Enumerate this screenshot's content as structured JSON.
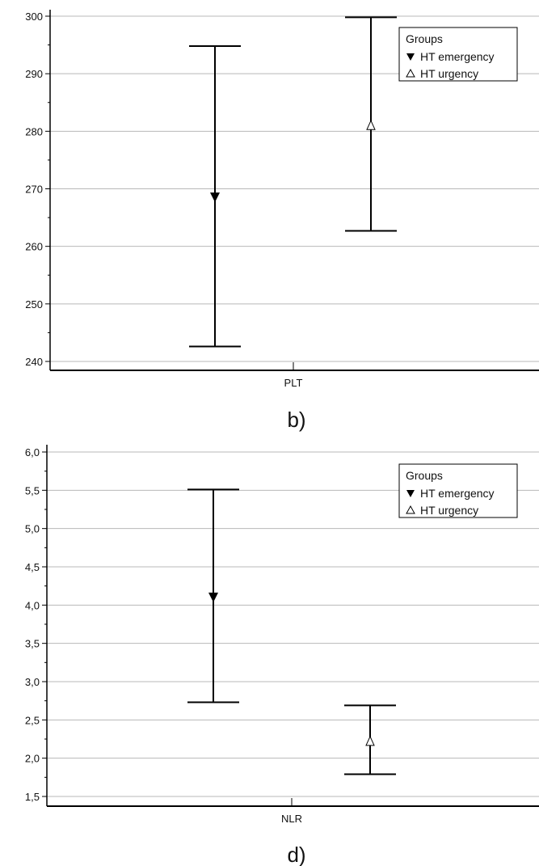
{
  "chart_data": [
    {
      "type": "errorbar",
      "panel_label": "b)",
      "category": "PLT",
      "ylim": [
        238,
        301
      ],
      "yticks": [
        240,
        250,
        260,
        270,
        280,
        290,
        300
      ],
      "ytick_labels": [
        "240",
        "250",
        "260",
        "270",
        "280",
        "290",
        "300"
      ],
      "grid": true,
      "legend": {
        "title": "Groups",
        "placement": "top-right",
        "entries": [
          "HT emergency",
          "HT urgency"
        ]
      },
      "series": [
        {
          "name": "HT emergency",
          "marker": "filled-down-triangle",
          "mean": 268.5,
          "lower": 242.6,
          "upper": 294.8
        },
        {
          "name": "HT urgency",
          "marker": "open-up-triangle",
          "mean": 281.0,
          "lower": 262.7,
          "upper": 299.8
        }
      ]
    },
    {
      "type": "errorbar",
      "panel_label": "d)",
      "category": "NLR",
      "ylim": [
        1.45,
        6.1
      ],
      "yticks": [
        1.5,
        2.0,
        2.5,
        3.0,
        3.5,
        4.0,
        4.5,
        5.0,
        5.5,
        6.0
      ],
      "ytick_labels": [
        "1,5",
        "2,0",
        "2,5",
        "3,0",
        "3,5",
        "4,0",
        "4,5",
        "5,0",
        "5,5",
        "6,0"
      ],
      "grid": true,
      "legend": {
        "title": "Groups",
        "placement": "top-right",
        "entries": [
          "HT emergency",
          "HT urgency"
        ]
      },
      "series": [
        {
          "name": "HT emergency",
          "marker": "filled-down-triangle",
          "mean": 4.1,
          "lower": 2.73,
          "upper": 5.51
        },
        {
          "name": "HT urgency",
          "marker": "open-up-triangle",
          "mean": 2.22,
          "lower": 1.79,
          "upper": 2.69
        }
      ]
    }
  ]
}
